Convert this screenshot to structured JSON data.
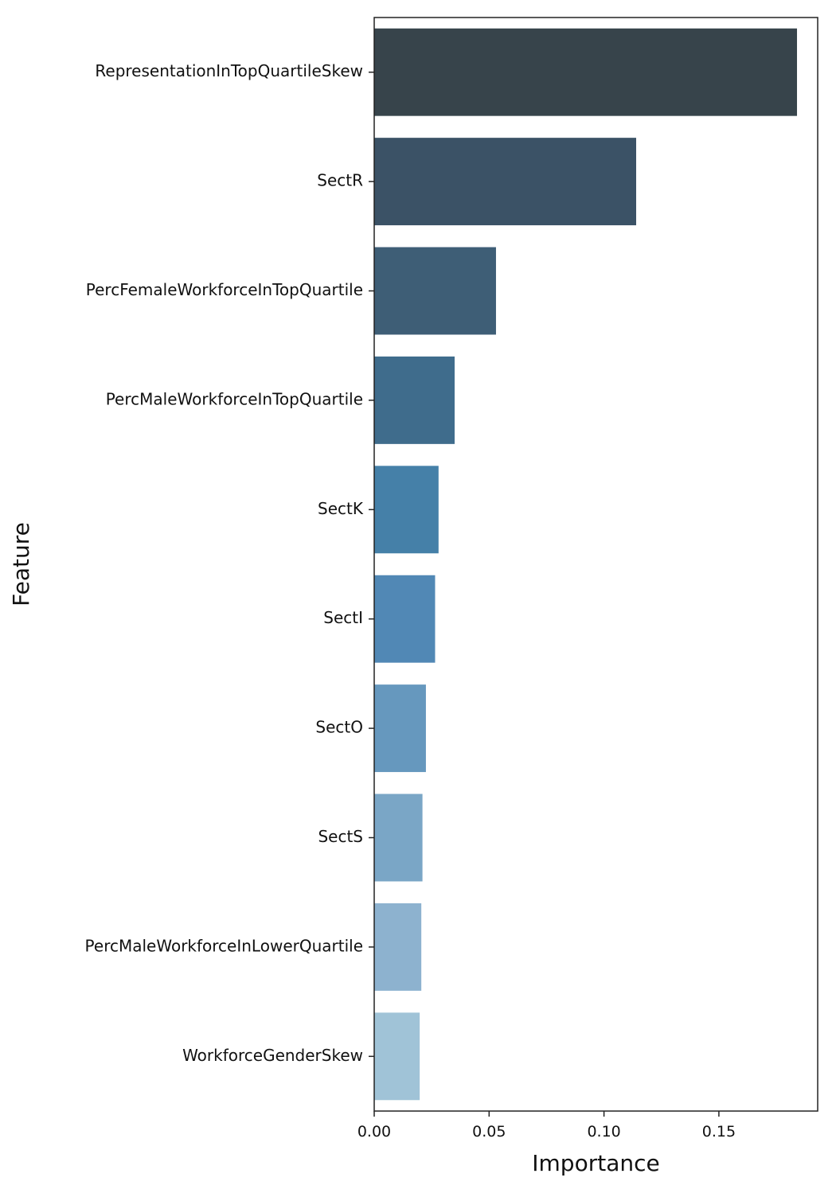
{
  "chart_data": {
    "type": "bar",
    "orientation": "horizontal",
    "title": "",
    "xlabel": "Importance",
    "ylabel": "Feature",
    "categories": [
      "RepresentationInTopQuartileSkew",
      "SectR",
      "PercFemaleWorkforceInTopQuartile",
      "PercMaleWorkforceInTopQuartile",
      "SectK",
      "SectI",
      "SectO",
      "SectS",
      "PercMaleWorkforceInLowerQuartile",
      "WorkforceGenderSkew"
    ],
    "values": [
      0.184,
      0.114,
      0.053,
      0.035,
      0.028,
      0.0265,
      0.0225,
      0.021,
      0.0205,
      0.0198
    ],
    "colors": [
      "#37444b",
      "#3b5266",
      "#3e5e76",
      "#3f6c8c",
      "#4580a8",
      "#5188b5",
      "#6698be",
      "#7aa6c6",
      "#8db2cf",
      "#a0c3d7"
    ],
    "xlim": [
      0,
      0.193
    ],
    "xticks": [
      0.0,
      0.05,
      0.1,
      0.15
    ],
    "xtick_labels": [
      "0.00",
      "0.05",
      "0.10",
      "0.15"
    ],
    "grid": false,
    "legend": "none"
  }
}
